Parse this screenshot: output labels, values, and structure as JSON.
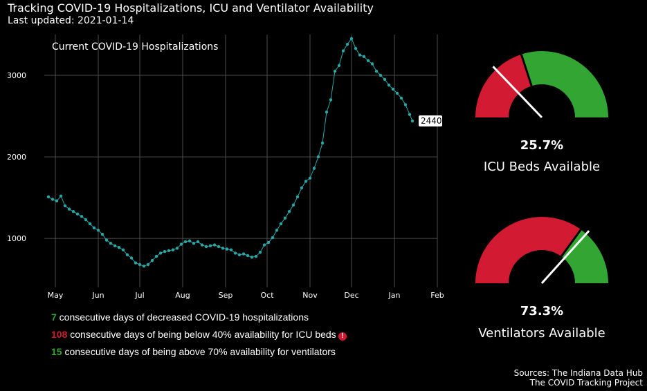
{
  "header": {
    "title": "Tracking COVID-19 Hospitalizations, ICU and Ventilator Availability",
    "subtitle": "Last updated: 2021-01-14"
  },
  "colors": {
    "line": "#2aa5a5",
    "good": "#33a532",
    "bad": "#d31a33"
  },
  "stats": [
    {
      "value": "7",
      "color": "#33a532",
      "text": " consecutive days of decreased COVID-19 hospitalizations"
    },
    {
      "value": "108",
      "color": "#d31a33",
      "text": " consecutive days of being below 40% availability for ICU beds",
      "alert_icon": "exclamation-circle-icon"
    },
    {
      "value": "15",
      "color": "#33a532",
      "text": " consecutive days of being above 70% availability for ventilators"
    }
  ],
  "gauges": [
    {
      "name": "icu",
      "value": 25.7,
      "pct_label": "25.7%",
      "label": "ICU Beds Available",
      "threshold": 40
    },
    {
      "name": "ventilators",
      "value": 73.3,
      "pct_label": "73.3%",
      "label": "Ventilators Available",
      "threshold": 70
    }
  ],
  "sources": [
    "Sources: The Indiana Data Hub",
    "The COVID Tracking Project"
  ],
  "chart_data": {
    "type": "line",
    "title": "Current COVID-19 Hospitalizations",
    "xlabel": "",
    "ylabel": "",
    "x_ticks": [
      "May",
      "Jun",
      "Jul",
      "Aug",
      "Sep",
      "Oct",
      "Nov",
      "Dec",
      "Jan",
      "Feb"
    ],
    "y_ticks": [
      1000,
      2000,
      3000
    ],
    "xlim": [
      "2020-04-23",
      "2021-02-01"
    ],
    "ylim": [
      400,
      3500
    ],
    "grid": true,
    "end_label": "2440",
    "series": [
      {
        "points": [
          [
            "2020-04-26",
            1510
          ],
          [
            "2020-04-29",
            1480
          ],
          [
            "2020-05-02",
            1460
          ],
          [
            "2020-05-05",
            1520
          ],
          [
            "2020-05-08",
            1400
          ],
          [
            "2020-05-11",
            1360
          ],
          [
            "2020-05-14",
            1330
          ],
          [
            "2020-05-17",
            1300
          ],
          [
            "2020-05-20",
            1270
          ],
          [
            "2020-05-23",
            1230
          ],
          [
            "2020-05-26",
            1180
          ],
          [
            "2020-05-29",
            1130
          ],
          [
            "2020-06-01",
            1100
          ],
          [
            "2020-06-04",
            1050
          ],
          [
            "2020-06-07",
            980
          ],
          [
            "2020-06-10",
            940
          ],
          [
            "2020-06-13",
            910
          ],
          [
            "2020-06-16",
            890
          ],
          [
            "2020-06-19",
            860
          ],
          [
            "2020-06-22",
            800
          ],
          [
            "2020-06-25",
            760
          ],
          [
            "2020-06-28",
            700
          ],
          [
            "2020-07-01",
            680
          ],
          [
            "2020-07-04",
            660
          ],
          [
            "2020-07-07",
            680
          ],
          [
            "2020-07-10",
            730
          ],
          [
            "2020-07-13",
            780
          ],
          [
            "2020-07-16",
            820
          ],
          [
            "2020-07-19",
            840
          ],
          [
            "2020-07-22",
            850
          ],
          [
            "2020-07-25",
            860
          ],
          [
            "2020-07-28",
            880
          ],
          [
            "2020-07-31",
            930
          ],
          [
            "2020-08-03",
            960
          ],
          [
            "2020-08-06",
            970
          ],
          [
            "2020-08-09",
            940
          ],
          [
            "2020-08-12",
            960
          ],
          [
            "2020-08-15",
            920
          ],
          [
            "2020-08-18",
            900
          ],
          [
            "2020-08-21",
            910
          ],
          [
            "2020-08-24",
            920
          ],
          [
            "2020-08-27",
            900
          ],
          [
            "2020-08-30",
            880
          ],
          [
            "2020-09-02",
            870
          ],
          [
            "2020-09-05",
            860
          ],
          [
            "2020-09-08",
            820
          ],
          [
            "2020-09-11",
            800
          ],
          [
            "2020-09-14",
            810
          ],
          [
            "2020-09-17",
            790
          ],
          [
            "2020-09-20",
            770
          ],
          [
            "2020-09-23",
            780
          ],
          [
            "2020-09-26",
            830
          ],
          [
            "2020-09-29",
            920
          ],
          [
            "2020-10-02",
            950
          ],
          [
            "2020-10-05",
            1010
          ],
          [
            "2020-10-08",
            1100
          ],
          [
            "2020-10-11",
            1180
          ],
          [
            "2020-10-14",
            1250
          ],
          [
            "2020-10-17",
            1330
          ],
          [
            "2020-10-20",
            1410
          ],
          [
            "2020-10-23",
            1510
          ],
          [
            "2020-10-26",
            1620
          ],
          [
            "2020-10-29",
            1700
          ],
          [
            "2020-11-01",
            1740
          ],
          [
            "2020-11-04",
            1860
          ],
          [
            "2020-11-07",
            2000
          ],
          [
            "2020-11-10",
            2170
          ],
          [
            "2020-11-13",
            2550
          ],
          [
            "2020-11-16",
            2700
          ],
          [
            "2020-11-19",
            3050
          ],
          [
            "2020-11-22",
            3120
          ],
          [
            "2020-11-25",
            3300
          ],
          [
            "2020-11-28",
            3380
          ],
          [
            "2020-12-01",
            3450
          ],
          [
            "2020-12-04",
            3330
          ],
          [
            "2020-12-07",
            3250
          ],
          [
            "2020-12-10",
            3230
          ],
          [
            "2020-12-13",
            3180
          ],
          [
            "2020-12-16",
            3140
          ],
          [
            "2020-12-19",
            3050
          ],
          [
            "2020-12-22",
            3000
          ],
          [
            "2020-12-25",
            2950
          ],
          [
            "2020-12-28",
            2880
          ],
          [
            "2020-12-31",
            2830
          ],
          [
            "2021-01-03",
            2780
          ],
          [
            "2021-01-06",
            2720
          ],
          [
            "2021-01-09",
            2640
          ],
          [
            "2021-01-12",
            2520
          ],
          [
            "2021-01-14",
            2440
          ]
        ]
      }
    ]
  }
}
